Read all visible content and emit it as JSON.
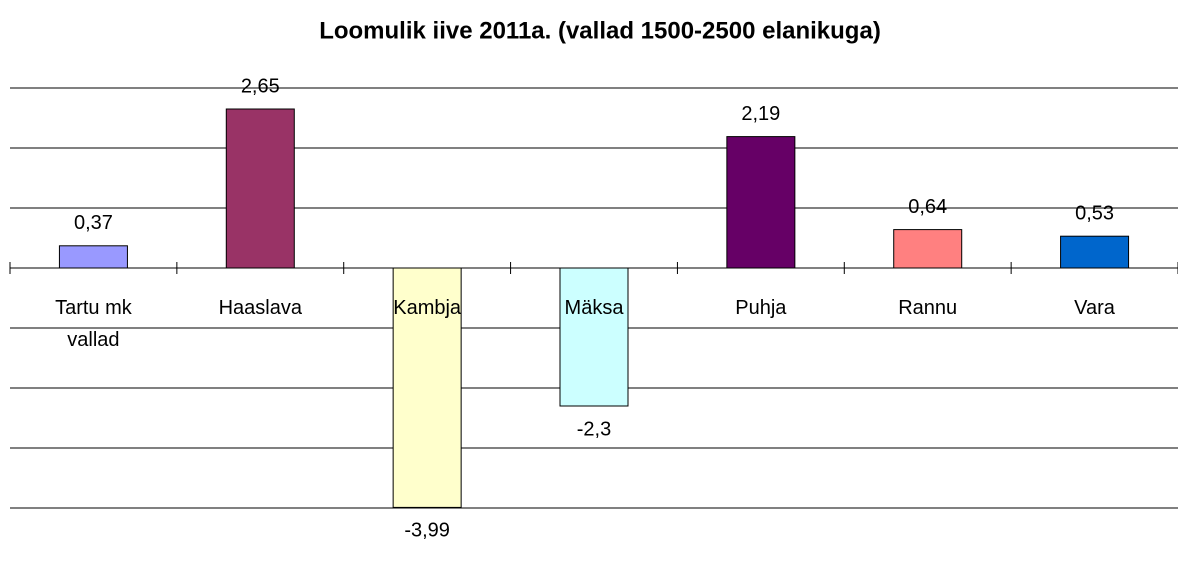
{
  "chart_data": {
    "type": "bar",
    "title": "Loomulik iive 2011a. (vallad 1500-2500 elanikuga)",
    "categories": [
      "Tartu mk vallad",
      "Haaslava",
      "Kambja",
      "Mäksa",
      "Puhja",
      "Rannu",
      "Vara"
    ],
    "values": [
      0.37,
      2.65,
      -3.99,
      -2.3,
      2.19,
      0.64,
      0.53
    ],
    "value_labels": [
      "0,37",
      "2,65",
      "-3,99",
      "-2,3",
      "2,19",
      "0,64",
      "0,53"
    ],
    "colors": [
      "#9999ff",
      "#993366",
      "#ffffcc",
      "#ccffff",
      "#660066",
      "#ff8080",
      "#0066cc"
    ],
    "ylim": [
      -4,
      3
    ],
    "yticks": [
      -4,
      -3,
      -2,
      -1,
      0,
      1,
      2,
      3
    ],
    "grid": true
  }
}
